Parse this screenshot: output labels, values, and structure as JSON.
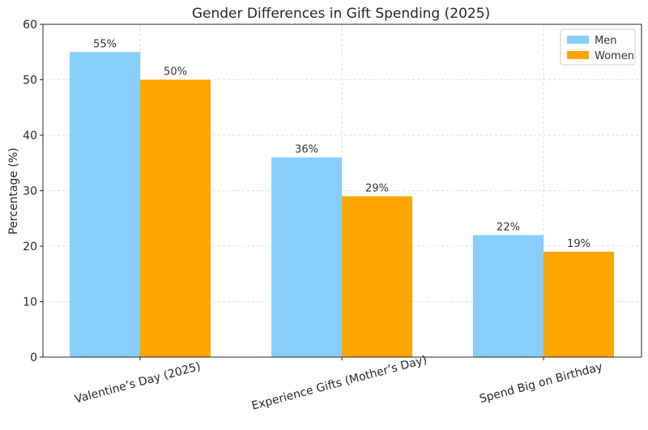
{
  "chart_data": {
    "type": "bar",
    "title": "Gender Differences in Gift Spending (2025)",
    "xlabel": "",
    "ylabel": "Percentage (%)",
    "ylim": [
      0,
      60
    ],
    "yticks": [
      0,
      10,
      20,
      30,
      40,
      50,
      60
    ],
    "grid": true,
    "legend_position": "top-right",
    "categories": [
      "Valentine’s Day (2025)",
      "Experience Gifts (Mother’s Day)",
      "Spend Big on Birthday"
    ],
    "series": [
      {
        "name": "Men",
        "color": "#87CEFA",
        "values": [
          55,
          36,
          22
        ],
        "labels": [
          "55%",
          "36%",
          "22%"
        ]
      },
      {
        "name": "Women",
        "color": "#FFA500",
        "values": [
          50,
          29,
          19
        ],
        "labels": [
          "50%",
          "29%",
          "19%"
        ]
      }
    ]
  }
}
